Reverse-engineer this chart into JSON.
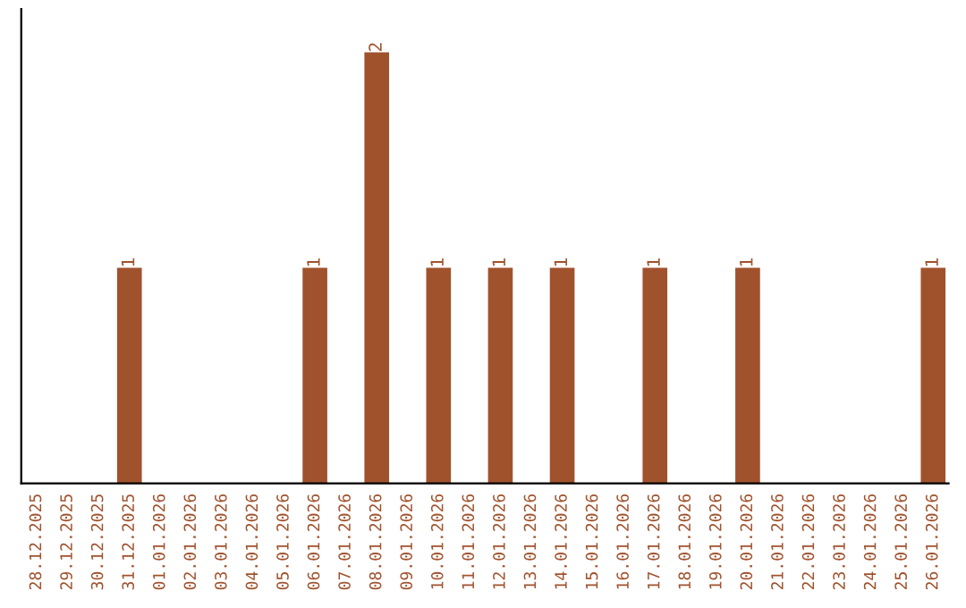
{
  "chart_data": {
    "type": "bar",
    "categories": [
      "28.12.2025",
      "29.12.2025",
      "30.12.2025",
      "31.12.2025",
      "01.01.2026",
      "02.01.2026",
      "03.01.2026",
      "04.01.2026",
      "05.01.2026",
      "06.01.2026",
      "07.01.2026",
      "08.01.2026",
      "09.01.2026",
      "10.01.2026",
      "11.01.2026",
      "12.01.2026",
      "13.01.2026",
      "14.01.2026",
      "15.01.2026",
      "16.01.2026",
      "17.01.2026",
      "18.01.2026",
      "19.01.2026",
      "20.01.2026",
      "21.01.2026",
      "22.01.2026",
      "23.01.2026",
      "24.01.2026",
      "25.01.2026",
      "26.01.2026"
    ],
    "values": [
      0,
      0,
      0,
      1,
      0,
      0,
      0,
      0,
      0,
      1,
      0,
      2,
      0,
      1,
      0,
      1,
      0,
      1,
      0,
      0,
      1,
      0,
      0,
      1,
      0,
      0,
      0,
      0,
      0,
      1
    ],
    "value_labels": [
      null,
      null,
      null,
      "1",
      null,
      null,
      null,
      null,
      null,
      "1",
      null,
      "2",
      null,
      "1",
      null,
      "1",
      null,
      "1",
      null,
      null,
      "1",
      null,
      null,
      "1",
      null,
      null,
      null,
      null,
      null,
      "1"
    ],
    "color": "#a0522d",
    "grid": false,
    "legend": false
  }
}
